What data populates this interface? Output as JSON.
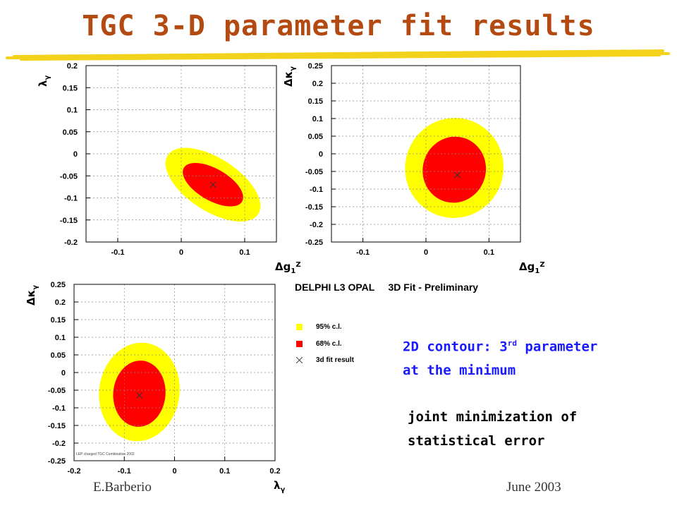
{
  "title": "TGC 3-D parameter fit results",
  "legend": {
    "header": "DELPHI L3 OPAL     3D Fit - Preliminary",
    "items": [
      {
        "label": "95% c.l.",
        "color": "#ffff00",
        "kind": "fill"
      },
      {
        "label": "68% c.l.",
        "color": "#ff0000",
        "kind": "fill"
      },
      {
        "label": "3d fit result",
        "color": "#000000",
        "kind": "cross"
      }
    ]
  },
  "credit": "LEP charged TGC Combination 2002",
  "notes": {
    "blue_line1_a": "2D contour: 3",
    "blue_line1_sup": "rd",
    "blue_line1_b": " parameter",
    "blue_line2": "at the minimum",
    "black_line1": "joint minimization of",
    "black_line2": "statistical error"
  },
  "footer": {
    "left": "E.Barberio",
    "right": "June 2003"
  },
  "chart_data": [
    {
      "type": "contour",
      "xlabel": "Δg1Z",
      "ylabel": "λγ",
      "xlim": [
        -0.15,
        0.15
      ],
      "ylim": [
        -0.2,
        0.2
      ],
      "xticks": [
        -0.1,
        0,
        0.1
      ],
      "xtick_labels": [
        "-0.1",
        "0",
        "0.1"
      ],
      "yticks": [
        -0.2,
        -0.15,
        -0.1,
        -0.05,
        0,
        0.05,
        0.1,
        0.15,
        0.2
      ],
      "ytick_labels": [
        "-0.2",
        "-0.15",
        "-0.1",
        "-0.05",
        "0",
        "0.05",
        "0.1",
        "0.15",
        "0.2"
      ],
      "grid": true,
      "best_fit": {
        "x": 0.05,
        "y": -0.07
      },
      "contours": [
        {
          "level": "95% c.l.",
          "color": "#ffff00",
          "center": [
            0.05,
            -0.07
          ],
          "semi_axes": [
            0.085,
            0.06
          ],
          "tilt_deg": 33
        },
        {
          "level": "68% c.l.",
          "color": "#ff0000",
          "center": [
            0.05,
            -0.07
          ],
          "semi_axes": [
            0.053,
            0.036
          ],
          "tilt_deg": 30
        }
      ]
    },
    {
      "type": "contour",
      "xlabel": "Δg1Z",
      "ylabel": "Δκγ",
      "xlim": [
        -0.15,
        0.15
      ],
      "ylim": [
        -0.25,
        0.25
      ],
      "xticks": [
        -0.1,
        0,
        0.1
      ],
      "xtick_labels": [
        "-0.1",
        "0",
        "0.1"
      ],
      "yticks": [
        -0.25,
        -0.2,
        -0.15,
        -0.1,
        -0.05,
        0,
        0.05,
        0.1,
        0.15,
        0.2,
        0.25
      ],
      "ytick_labels": [
        "-0.25",
        "-0.2",
        "-0.15",
        "-0.1",
        "-0.05",
        "0",
        "0.05",
        "0.1",
        "0.15",
        "0.2",
        "0.25"
      ],
      "grid": true,
      "best_fit": {
        "x": 0.05,
        "y": -0.06
      },
      "contours": [
        {
          "level": "95% c.l.",
          "color": "#ffff00",
          "center": [
            0.045,
            -0.04
          ],
          "semi_axes": [
            0.078,
            0.142
          ],
          "tilt_deg": 20
        },
        {
          "level": "68% c.l.",
          "color": "#ff0000",
          "center": [
            0.045,
            -0.045
          ],
          "semi_axes": [
            0.05,
            0.094
          ],
          "tilt_deg": 18
        }
      ]
    },
    {
      "type": "contour",
      "xlabel": "λγ",
      "ylabel": "Δκγ",
      "xlim": [
        -0.2,
        0.2
      ],
      "ylim": [
        -0.25,
        0.25
      ],
      "xticks": [
        -0.2,
        -0.1,
        0,
        0.1,
        0.2
      ],
      "xtick_labels": [
        "-0.2",
        "-0.1",
        "0",
        "0.1",
        "0.2"
      ],
      "yticks": [
        -0.25,
        -0.2,
        -0.15,
        -0.1,
        -0.05,
        0,
        0.05,
        0.1,
        0.15,
        0.2,
        0.25
      ],
      "ytick_labels": [
        "-0.25",
        "-0.2",
        "-0.15",
        "-0.1",
        "-0.05",
        "0",
        "0.05",
        "0.1",
        "0.15",
        "0.2",
        "0.25"
      ],
      "grid": true,
      "best_fit": {
        "x": -0.07,
        "y": -0.065
      },
      "contours": [
        {
          "level": "95% c.l.",
          "color": "#ffff00",
          "center": [
            -0.07,
            -0.055
          ],
          "semi_axes": [
            0.08,
            0.14
          ],
          "tilt_deg": 8
        },
        {
          "level": "68% c.l.",
          "color": "#ff0000",
          "center": [
            -0.07,
            -0.06
          ],
          "semi_axes": [
            0.052,
            0.094
          ],
          "tilt_deg": 5
        }
      ]
    }
  ]
}
